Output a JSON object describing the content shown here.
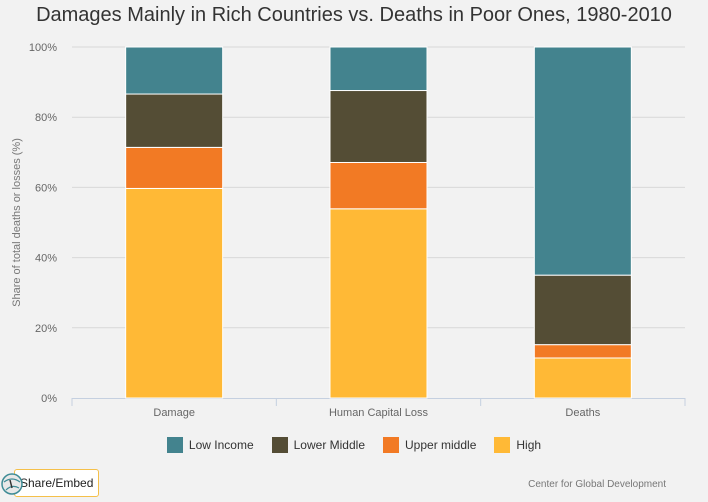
{
  "chart_data": {
    "type": "bar",
    "stacked": true,
    "title": "Damages Mainly in Rich Countries vs. Deaths in Poor Ones, 1980-2010",
    "xlabel": "",
    "ylabel": "Share of total deaths or losses (%)",
    "ylim": [
      0,
      100
    ],
    "yticks": [
      "0%",
      "20%",
      "40%",
      "60%",
      "80%",
      "100%"
    ],
    "grid": true,
    "legend_position": "bottom",
    "categories": [
      "Damage",
      "Human Capital Loss",
      "Deaths"
    ],
    "series": [
      {
        "name": "High",
        "color": "#ffb936",
        "values": [
          59.7,
          53.9,
          11.4
        ]
      },
      {
        "name": "Upper middle",
        "color": "#f27a24",
        "values": [
          11.7,
          13.2,
          3.8
        ]
      },
      {
        "name": "Lower Middle",
        "color": "#544d35",
        "values": [
          15.2,
          20.5,
          19.8
        ]
      },
      {
        "name": "Low Income",
        "color": "#43838e",
        "values": [
          13.4,
          12.4,
          65.0
        ]
      }
    ],
    "legend_order": [
      "Low Income",
      "Lower Middle",
      "Upper middle",
      "High"
    ]
  },
  "share_label": "Share/Embed",
  "credit": "Center for Global Development"
}
